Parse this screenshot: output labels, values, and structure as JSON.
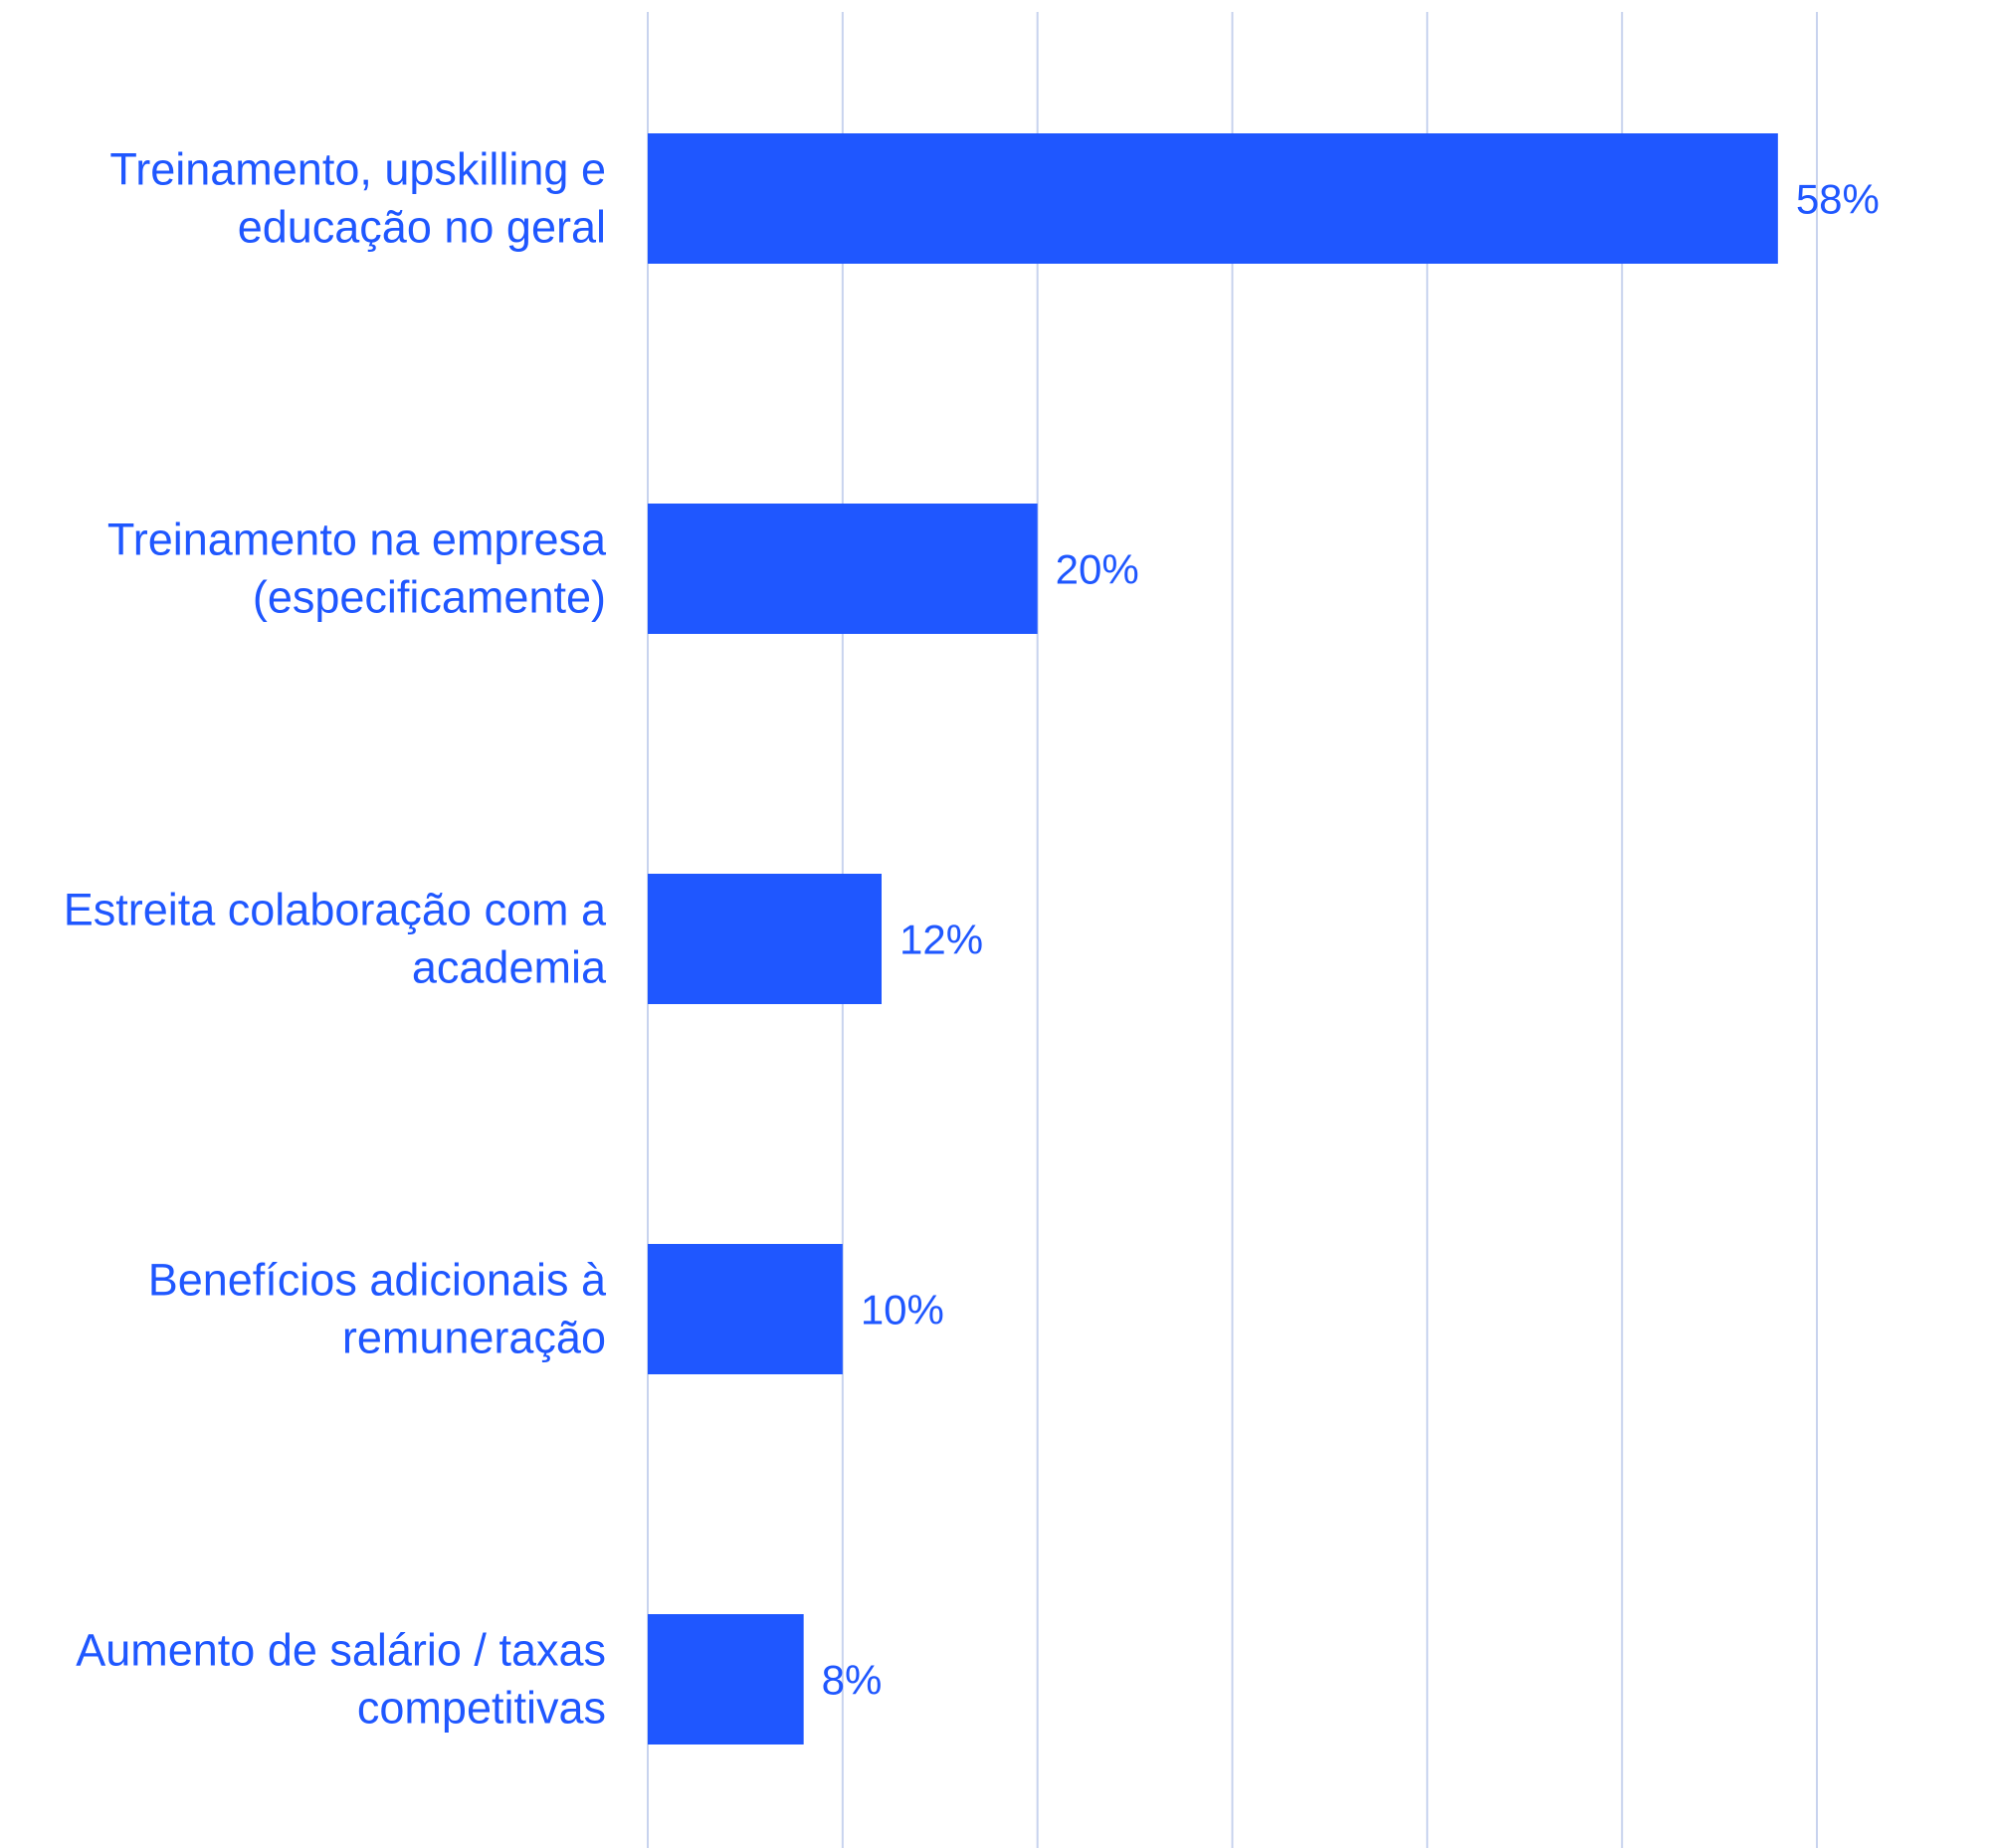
{
  "chart_data": {
    "type": "bar",
    "orientation": "horizontal",
    "categories": [
      [
        "Treinamento, upskilling e",
        "educação no geral"
      ],
      [
        "Treinamento na empresa",
        "(especificamente)"
      ],
      [
        "Estreita colaboração com a",
        "academia"
      ],
      [
        "Benefícios adicionais à",
        "remuneração"
      ],
      [
        "Aumento de salário / taxas",
        "competitivas"
      ]
    ],
    "values": [
      58,
      20,
      12,
      10,
      8
    ],
    "value_labels": [
      "58%",
      "20%",
      "12%",
      "10%",
      "8%"
    ],
    "xlim": [
      0,
      60
    ],
    "x_gridlines": [
      0,
      10,
      20,
      30,
      40,
      50,
      60
    ],
    "grid": true,
    "legend": "none",
    "title": "",
    "xlabel": "",
    "ylabel": "",
    "colors": {
      "bar": "#1f57ff",
      "text": "#1f57ff",
      "grid": "#c8d3ee"
    }
  }
}
